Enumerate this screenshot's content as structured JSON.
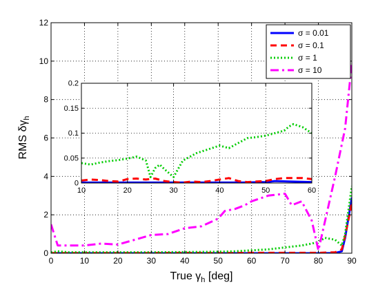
{
  "chart_data": [
    {
      "type": "line",
      "xlabel": "True γh [deg]",
      "ylabel": "RMS δγh",
      "xlim": [
        0,
        90
      ],
      "ylim": [
        0,
        12
      ],
      "xticks": [
        0,
        10,
        20,
        30,
        40,
        50,
        60,
        70,
        80,
        90
      ],
      "yticks": [
        0,
        2,
        4,
        6,
        8,
        10,
        12
      ],
      "grid": true,
      "legend_position": "top-right",
      "series": [
        {
          "name": "σ = 0.01",
          "color": "#0000ff",
          "style": "solid",
          "x": [
            0,
            5,
            10,
            20,
            30,
            40,
            50,
            60,
            70,
            80,
            85,
            87,
            88,
            90
          ],
          "y": [
            0,
            0,
            0,
            0,
            0,
            0,
            0,
            0,
            0,
            0,
            0.01,
            0.1,
            0.8,
            2.9
          ]
        },
        {
          "name": "σ = 0.1",
          "color": "#ff0000",
          "style": "dashed",
          "x": [
            0,
            5,
            10,
            20,
            30,
            40,
            50,
            60,
            70,
            80,
            85,
            87,
            88,
            90
          ],
          "y": [
            0.01,
            0.01,
            0.01,
            0.01,
            0.01,
            0.02,
            0.01,
            0.02,
            0.02,
            0.02,
            0.05,
            0.2,
            0.9,
            2.6
          ]
        },
        {
          "name": "σ = 1",
          "color": "#00cc00",
          "style": "dotted",
          "x": [
            0,
            2,
            5,
            10,
            20,
            30,
            40,
            50,
            55,
            60,
            65,
            70,
            75,
            78,
            80,
            82,
            85,
            87,
            88,
            90
          ],
          "y": [
            0.04,
            0.1,
            0.05,
            0.05,
            0.05,
            0.05,
            0.06,
            0.08,
            0.1,
            0.15,
            0.2,
            0.3,
            0.4,
            0.5,
            0.6,
            0.8,
            0.7,
            0.4,
            1.0,
            3.5
          ]
        },
        {
          "name": "σ = 10",
          "color": "#ff00ff",
          "style": "dashdot",
          "x": [
            0,
            2,
            5,
            10,
            15,
            20,
            25,
            30,
            35,
            40,
            45,
            50,
            52,
            55,
            58,
            60,
            65,
            70,
            72,
            75,
            78,
            80,
            85,
            88,
            90
          ],
          "y": [
            1.5,
            0.4,
            0.4,
            0.4,
            0.5,
            0.45,
            0.7,
            0.95,
            1.0,
            1.3,
            1.4,
            1.8,
            2.2,
            2.3,
            2.5,
            2.7,
            3.0,
            3.1,
            2.5,
            2.7,
            1.7,
            0.15,
            4.0,
            6.5,
            9.9
          ]
        }
      ]
    },
    {
      "type": "line",
      "title": "",
      "xlim": [
        10,
        60
      ],
      "ylim": [
        0,
        0.2
      ],
      "xticks": [
        10,
        20,
        30,
        40,
        50,
        60
      ],
      "yticks": [
        0,
        0.05,
        0.1,
        0.15,
        0.2
      ],
      "ytick_labels": [
        "0",
        "0.05",
        "0.1",
        "0.15",
        "0.2"
      ],
      "grid": true,
      "series": [
        {
          "name": "σ = 0.01",
          "color": "#0000ff",
          "style": "solid",
          "x": [
            10,
            20,
            30,
            40,
            45,
            50,
            52,
            55,
            60
          ],
          "y": [
            0.001,
            0.001,
            0.001,
            0.001,
            0.001,
            0.002,
            0.004,
            0.003,
            0.002
          ]
        },
        {
          "name": "σ = 0.1",
          "color": "#ff0000",
          "style": "dashed",
          "x": [
            10,
            12,
            14,
            16,
            18,
            20,
            22,
            24,
            26,
            28,
            30,
            32,
            34,
            36,
            38,
            40,
            42,
            44,
            46,
            48,
            50,
            52,
            54,
            56,
            58,
            60
          ],
          "y": [
            0.005,
            0.007,
            0.006,
            0.004,
            0.003,
            0.008,
            0.009,
            0.007,
            0.009,
            0.004,
            0.002,
            0.001,
            0.003,
            0.002,
            0.004,
            0.007,
            0.01,
            0.004,
            0.002,
            0.003,
            0.004,
            0.008,
            0.01,
            0.01,
            0.01,
            0.008
          ]
        },
        {
          "name": "σ = 1",
          "color": "#00cc00",
          "style": "dotted",
          "x": [
            10,
            12,
            14,
            16,
            18,
            20,
            22,
            24,
            25,
            26,
            27,
            28,
            30,
            32,
            35,
            38,
            40,
            42,
            44,
            46,
            48,
            50,
            52,
            54,
            55,
            56,
            58,
            60
          ],
          "y": [
            0.04,
            0.037,
            0.041,
            0.044,
            0.046,
            0.049,
            0.053,
            0.045,
            0.012,
            0.03,
            0.037,
            0.028,
            0.012,
            0.045,
            0.06,
            0.069,
            0.075,
            0.07,
            0.08,
            0.09,
            0.092,
            0.095,
            0.1,
            0.105,
            0.113,
            0.118,
            0.112,
            0.1
          ]
        },
        {
          "name": "σ = 10",
          "color": "#ff00ff",
          "style": "dashdot",
          "x": [],
          "y": []
        }
      ]
    }
  ]
}
